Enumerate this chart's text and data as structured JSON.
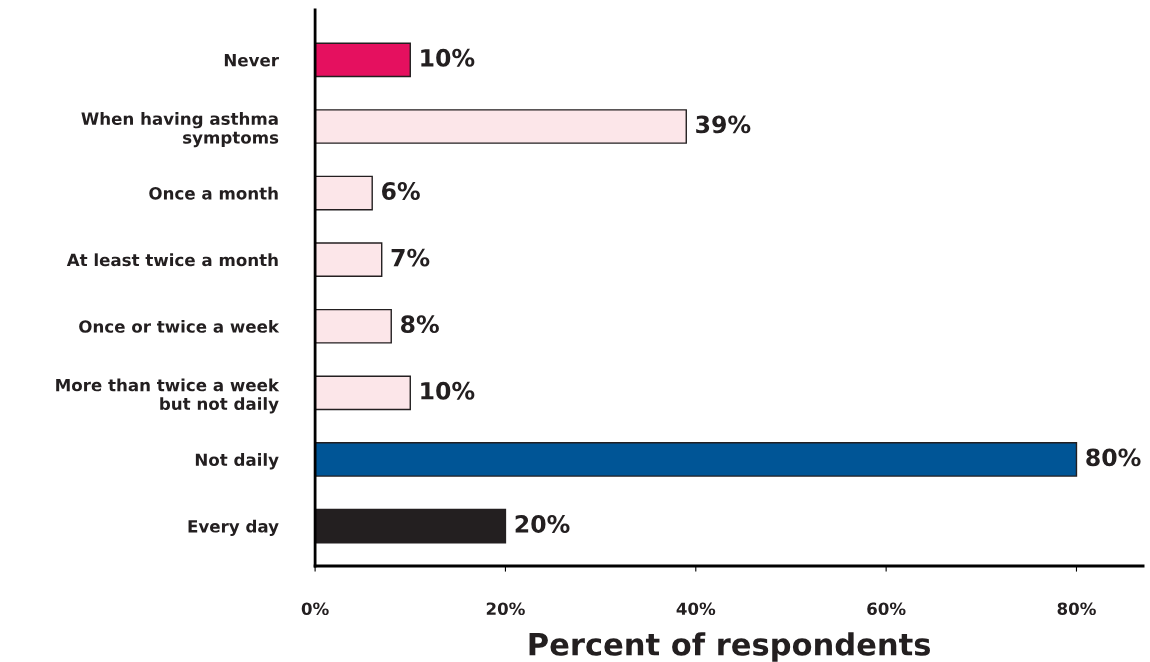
{
  "chart_data": {
    "type": "bar",
    "orientation": "horizontal",
    "xlabel": "Percent of respondents",
    "categories": [
      "Never",
      "When having asthma\nsymptoms",
      "Once a month",
      "At least twice a month",
      "Once or twice a week",
      "More than twice a week\nbut not daily",
      "Not daily",
      "Every day"
    ],
    "values": [
      10,
      39,
      6,
      7,
      8,
      10,
      80,
      20
    ],
    "value_labels": [
      "10%",
      "39%",
      "6%",
      "7%",
      "8%",
      "10%",
      "80%",
      "20%"
    ],
    "colors": [
      "#e5105f",
      "#fce6e9",
      "#fce6e9",
      "#fce6e9",
      "#fce6e9",
      "#fce6e9",
      "#005596",
      "#231f20"
    ],
    "xlim": [
      0,
      87
    ],
    "xticks": [
      {
        "value": 0,
        "label": "0%"
      },
      {
        "value": 20,
        "label": "20%"
      },
      {
        "value": 40,
        "label": "40%"
      },
      {
        "value": 60,
        "label": "60%"
      },
      {
        "value": 80,
        "label": "80%"
      }
    ],
    "grid": false,
    "legend": false
  }
}
